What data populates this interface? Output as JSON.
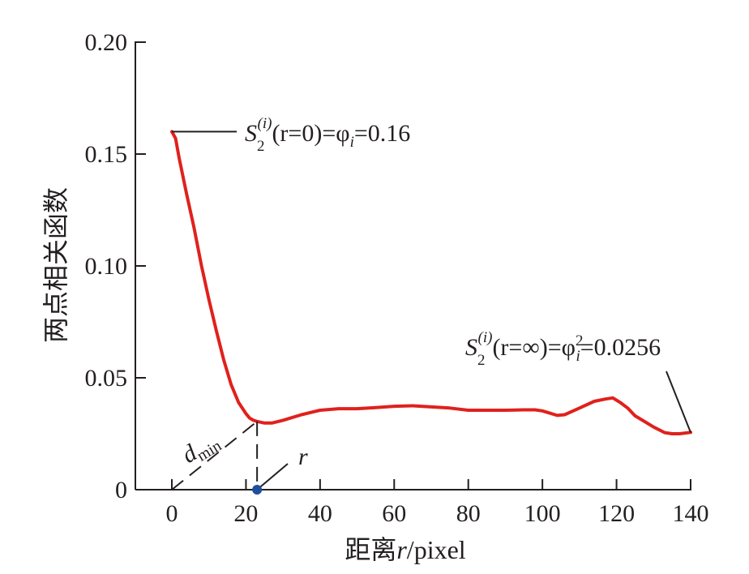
{
  "chart_data": {
    "type": "line",
    "xlabel_cjk": "距离",
    "xlabel_var": "r",
    "xlabel_unit": "/pixel",
    "ylabel": "两点相关函数",
    "xlim": [
      -8,
      140
    ],
    "ylim": [
      0,
      0.2
    ],
    "xticks": [
      0,
      20,
      40,
      60,
      80,
      100,
      120,
      140
    ],
    "yticks": [
      0,
      0.05,
      0.1,
      0.15,
      0.2
    ],
    "ytick_labels": [
      "0",
      "0.05",
      "0.10",
      "0.15",
      "0.20"
    ],
    "grid": false,
    "series": [
      {
        "color": "#e0211c",
        "x": [
          0,
          1,
          2,
          4,
          6,
          8,
          10,
          12,
          14,
          16,
          18,
          20,
          21,
          22,
          23,
          25,
          27,
          30,
          35,
          40,
          45,
          50,
          55,
          60,
          65,
          70,
          75,
          80,
          85,
          90,
          95,
          98,
          100,
          102,
          104,
          106,
          110,
          114,
          117,
          119,
          121,
          123,
          125,
          127,
          130,
          133,
          135,
          137,
          140
        ],
        "y": [
          0.16,
          0.157,
          0.148,
          0.132,
          0.117,
          0.1,
          0.085,
          0.071,
          0.058,
          0.047,
          0.039,
          0.034,
          0.032,
          0.031,
          0.0305,
          0.0298,
          0.0298,
          0.031,
          0.0335,
          0.0355,
          0.0362,
          0.0362,
          0.0367,
          0.0373,
          0.0375,
          0.037,
          0.0365,
          0.0355,
          0.0355,
          0.0355,
          0.0357,
          0.0357,
          0.0352,
          0.0342,
          0.0332,
          0.0335,
          0.0365,
          0.0395,
          0.0405,
          0.041,
          0.039,
          0.0365,
          0.033,
          0.031,
          0.028,
          0.0255,
          0.025,
          0.025,
          0.0256
        ]
      }
    ],
    "annotations": {
      "start": {
        "S": "S",
        "sub": "2",
        "sup": "(i)",
        "rest": "(r=0)=φ",
        "rest_sub": "i",
        "tail": "=0.16",
        "x": 0,
        "y": 0.16
      },
      "end": {
        "S": "S",
        "sub": "2",
        "sup": "(i)",
        "rest": "(r=∞)=φ",
        "rest_sup": "2",
        "rest_sub": "i",
        "tail": "=0.0256",
        "x": 140,
        "y": 0.0256
      },
      "dmin": {
        "d": "d",
        "sub": "min",
        "x": 23,
        "y": 0.0305
      },
      "r_marker": {
        "label": "r",
        "x": 23,
        "y": 0,
        "color": "#1f4e9c"
      }
    }
  }
}
